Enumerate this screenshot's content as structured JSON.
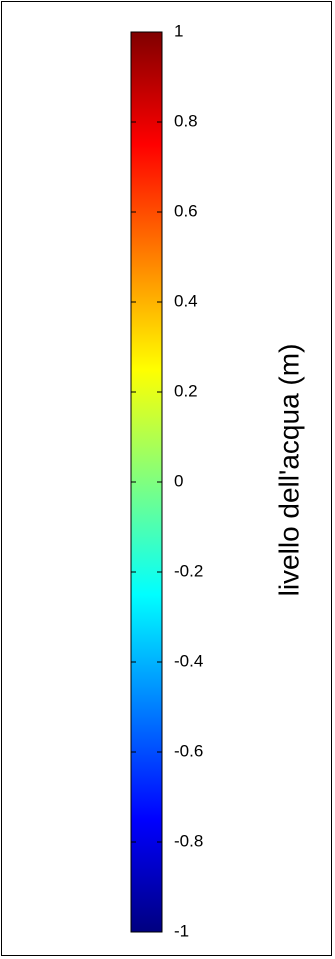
{
  "chart_data": {
    "type": "heatmap",
    "colormap": "jet",
    "orientation": "vertical",
    "clim": [
      -1,
      1
    ],
    "ticks": [
      1,
      0.8,
      0.6,
      0.4,
      0.2,
      0,
      -0.2,
      -0.4,
      -0.6,
      -0.8,
      -1
    ],
    "tick_labels": [
      "1",
      "0.8",
      "0.6",
      "0.4",
      "0.2",
      "0",
      "-0.2",
      "-0.4",
      "-0.6",
      "-0.8",
      "-1"
    ],
    "color_stops": [
      {
        "value": 1.0,
        "color": "#800000"
      },
      {
        "value": 0.75,
        "color": "#ff0000"
      },
      {
        "value": 0.25,
        "color": "#ffff00"
      },
      {
        "value": -0.25,
        "color": "#00ffff"
      },
      {
        "value": -0.75,
        "color": "#0000ff"
      },
      {
        "value": -1.0,
        "color": "#000080"
      }
    ],
    "ylabel": "livello dell'acqua (m)"
  }
}
